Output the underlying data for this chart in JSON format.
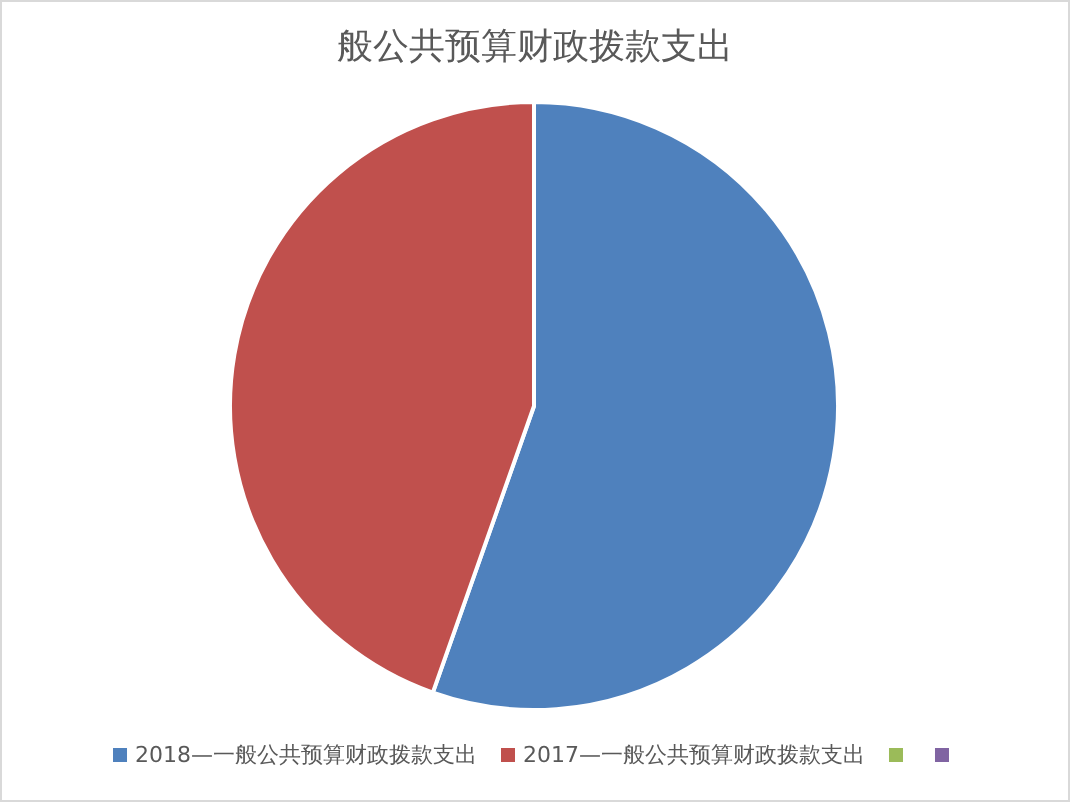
{
  "chart_data": {
    "type": "pie",
    "title": "般公共预算财政拨款支出",
    "categories": [
      "2018—一般公共预算财政拨款支出",
      "2017—一般公共预算财政拨款支出",
      null,
      null
    ],
    "values": [
      55.4,
      44.6,
      0,
      0
    ],
    "colors": [
      "#4f81bd",
      "#c0504d",
      "#9bbb59",
      "#8064a2"
    ],
    "legend": "bottom"
  }
}
